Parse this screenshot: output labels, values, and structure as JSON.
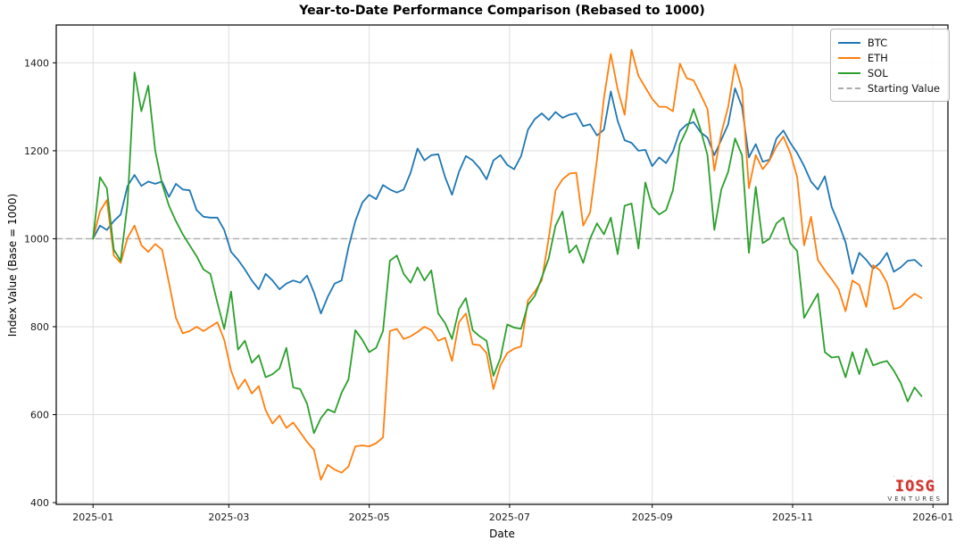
{
  "figure": {
    "background": "#ffffff",
    "watermark": {
      "brand": "IOSG",
      "sub": "VENTURES",
      "color": "#cf352e",
      "dots": "· · ·"
    }
  },
  "chart_data": {
    "type": "line",
    "title": "Year-to-Date Performance Comparison (Rebased to 1000)",
    "xlabel": "Date",
    "ylabel": "Index Value (Base = 1000)",
    "grid": true,
    "legend_position": "upper right",
    "x_unit": "days since 2025-01-01",
    "sample_step_days": 3,
    "xlim_days": [
      -16,
      371.5
    ],
    "ylim": [
      396,
      1486
    ],
    "x_ticks": [
      {
        "day": 0,
        "label": "2025-01"
      },
      {
        "day": 59,
        "label": "2025-03"
      },
      {
        "day": 120,
        "label": "2025-05"
      },
      {
        "day": 181,
        "label": "2025-07"
      },
      {
        "day": 243,
        "label": "2025-09"
      },
      {
        "day": 304,
        "label": "2025-11"
      },
      {
        "day": 365,
        "label": "2026-01"
      }
    ],
    "y_ticks": [
      400,
      600,
      800,
      1000,
      1200,
      1400
    ],
    "baseline": {
      "label": "Starting Value",
      "value": 1000,
      "color": "#ababab",
      "dash": [
        7,
        4
      ]
    },
    "legend": [
      {
        "label": "BTC",
        "color": "#1f77b4",
        "dash": false
      },
      {
        "label": "ETH",
        "color": "#ff7f0e",
        "dash": false
      },
      {
        "label": "SOL",
        "color": "#2ca02c",
        "dash": false
      },
      {
        "label": "Starting Value",
        "color": "#ababab",
        "dash": true
      }
    ],
    "series": [
      {
        "name": "BTC",
        "color": "#1f77b4",
        "values": [
          1000,
          1030,
          1020,
          1040,
          1055,
          1120,
          1145,
          1120,
          1130,
          1125,
          1130,
          1095,
          1125,
          1112,
          1110,
          1065,
          1050,
          1048,
          1048,
          1020,
          970,
          952,
          930,
          905,
          885,
          920,
          905,
          885,
          898,
          905,
          900,
          916,
          878,
          830,
          868,
          898,
          905,
          980,
          1040,
          1082,
          1100,
          1090,
          1122,
          1112,
          1105,
          1112,
          1150,
          1205,
          1178,
          1190,
          1192,
          1140,
          1100,
          1152,
          1188,
          1178,
          1160,
          1135,
          1178,
          1190,
          1168,
          1158,
          1188,
          1248,
          1272,
          1285,
          1270,
          1288,
          1275,
          1282,
          1285,
          1256,
          1260,
          1235,
          1248,
          1335,
          1268,
          1224,
          1218,
          1200,
          1202,
          1165,
          1185,
          1172,
          1198,
          1245,
          1260,
          1265,
          1242,
          1230,
          1190,
          1225,
          1260,
          1342,
          1300,
          1185,
          1215,
          1175,
          1180,
          1228,
          1246,
          1218,
          1195,
          1165,
          1130,
          1112,
          1142,
          1072,
          1035,
          992,
          920,
          968,
          952,
          932,
          945,
          968,
          925,
          935,
          950,
          952,
          938
        ]
      },
      {
        "name": "ETH",
        "color": "#ff7f0e",
        "values": [
          1000,
          1062,
          1088,
          962,
          945,
          1002,
          1030,
          985,
          970,
          988,
          975,
          900,
          820,
          785,
          790,
          800,
          790,
          800,
          810,
          770,
          700,
          658,
          680,
          648,
          665,
          610,
          580,
          598,
          570,
          582,
          560,
          538,
          520,
          452,
          486,
          475,
          468,
          482,
          528,
          530,
          528,
          535,
          548,
          790,
          795,
          772,
          778,
          788,
          800,
          792,
          768,
          775,
          722,
          810,
          830,
          760,
          758,
          740,
          658,
          712,
          740,
          750,
          755,
          860,
          880,
          905,
          1000,
          1110,
          1135,
          1148,
          1150,
          1030,
          1060,
          1180,
          1320,
          1420,
          1340,
          1282,
          1430,
          1370,
          1344,
          1318,
          1300,
          1300,
          1290,
          1398,
          1365,
          1360,
          1328,
          1295,
          1155,
          1240,
          1300,
          1396,
          1340,
          1115,
          1190,
          1158,
          1178,
          1210,
          1232,
          1195,
          1140,
          985,
          1050,
          952,
          928,
          908,
          885,
          835,
          905,
          895,
          845,
          940,
          928,
          900,
          840,
          845,
          862,
          875,
          865
        ]
      },
      {
        "name": "SOL",
        "color": "#2ca02c",
        "values": [
          1000,
          1140,
          1115,
          975,
          950,
          1080,
          1378,
          1290,
          1348,
          1200,
          1125,
          1075,
          1040,
          1010,
          985,
          960,
          930,
          920,
          855,
          795,
          880,
          748,
          768,
          718,
          735,
          685,
          692,
          705,
          752,
          662,
          658,
          625,
          558,
          592,
          612,
          605,
          650,
          680,
          792,
          770,
          742,
          752,
          790,
          950,
          962,
          920,
          900,
          935,
          905,
          928,
          830,
          808,
          772,
          840,
          865,
          792,
          778,
          768,
          688,
          728,
          805,
          798,
          795,
          850,
          870,
          912,
          955,
          1030,
          1062,
          968,
          985,
          945,
          1000,
          1035,
          1010,
          1048,
          965,
          1075,
          1080,
          978,
          1128,
          1072,
          1055,
          1065,
          1110,
          1215,
          1248,
          1295,
          1248,
          1190,
          1020,
          1112,
          1152,
          1228,
          1190,
          968,
          1118,
          990,
          1000,
          1035,
          1048,
          990,
          972,
          820,
          848,
          875,
          742,
          730,
          732,
          685,
          742,
          692,
          750,
          712,
          718,
          722,
          700,
          672,
          630,
          662,
          642
        ]
      }
    ]
  }
}
